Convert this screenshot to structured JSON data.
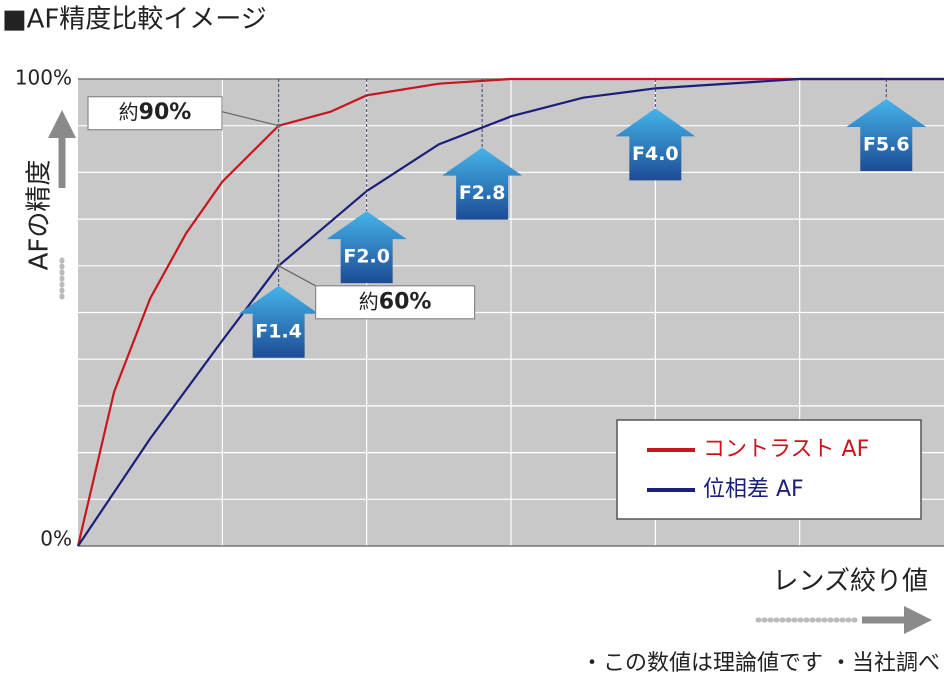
{
  "chart_data": {
    "type": "line",
    "title": "■AF精度比較イメージ",
    "y_label": "AFの精度",
    "x_label": "レンズ絞り値",
    "footnote": "・この数値は理論値です ・当社調べ",
    "xlim": [
      0,
      6
    ],
    "ylim": [
      0,
      100
    ],
    "yticks": [
      {
        "value": 0,
        "label": "0%"
      },
      {
        "value": 100,
        "label": "100%"
      }
    ],
    "grid": {
      "x_step": 1,
      "y_step": 10
    },
    "legend": "lower right",
    "series": [
      {
        "name": "コントラスト AF",
        "color": "#c8161e",
        "x": [
          0,
          0.25,
          0.5,
          0.75,
          1.0,
          1.39,
          1.75,
          2.0,
          2.5,
          3.0,
          6.0
        ],
        "values": [
          0,
          33,
          53,
          67,
          78,
          90,
          93,
          96.5,
          99,
          100,
          100
        ]
      },
      {
        "name": "位相差 AF",
        "color": "#1b1f7a",
        "x": [
          0,
          0.5,
          1.0,
          1.39,
          2.0,
          2.5,
          3.0,
          3.5,
          4.0,
          5.0,
          6.0
        ],
        "values": [
          0,
          23,
          44,
          60,
          76,
          86,
          92,
          96,
          98,
          100,
          100
        ]
      }
    ],
    "markers": [
      {
        "label": "F1.4",
        "x": 1.39
      },
      {
        "label": "F2.0",
        "x": 2.0
      },
      {
        "label": "F2.8",
        "x": 2.8
      },
      {
        "label": "F4.0",
        "x": 4.0
      },
      {
        "label": "F5.6",
        "x": 5.6
      }
    ],
    "annotations": [
      {
        "prefix": "約",
        "label": "90%",
        "value": 90,
        "x": 1.39
      },
      {
        "prefix": "約",
        "label": "60%",
        "value": 60,
        "x": 1.39
      }
    ]
  }
}
